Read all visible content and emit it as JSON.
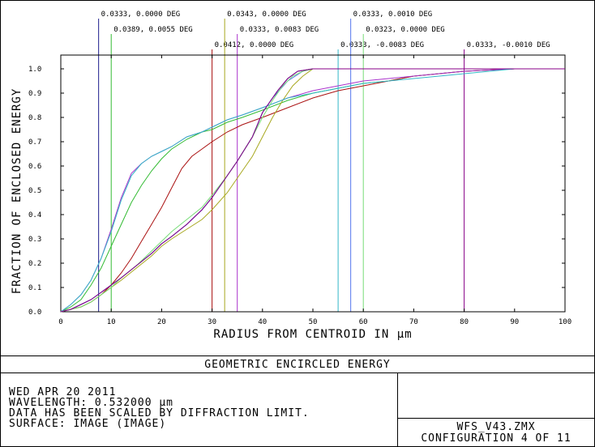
{
  "chart_data": {
    "type": "line",
    "xlabel": "RADIUS FROM CENTROID IN µm",
    "ylabel": "FRACTION OF ENCLOSED ENERGY",
    "xlim": [
      0,
      100
    ],
    "ylim": [
      0,
      1
    ],
    "xticks": [
      "0",
      "10",
      "20",
      "30",
      "40",
      "50",
      "60",
      "70",
      "80",
      "90",
      "100"
    ],
    "yticks": [
      "0.0",
      "0.1",
      "0.2",
      "0.3",
      "0.4",
      "0.5",
      "0.6",
      "0.7",
      "0.8",
      "0.9",
      "1.0"
    ],
    "grid": false,
    "legend_placement": "top",
    "series": [
      {
        "name": "0.0333, 0.0000 DEG",
        "color": "#1c1c8c",
        "marker_x": 7.5,
        "x": [
          0,
          2,
          4,
          6,
          8,
          10,
          12,
          15,
          18,
          20,
          22,
          25,
          28,
          30,
          33,
          35,
          38,
          40,
          43,
          45,
          47,
          50,
          55,
          60,
          65,
          70,
          75,
          80,
          85,
          90,
          95,
          100
        ],
        "y": [
          0,
          0.01,
          0.03,
          0.05,
          0.08,
          0.11,
          0.14,
          0.19,
          0.24,
          0.28,
          0.31,
          0.36,
          0.42,
          0.47,
          0.56,
          0.62,
          0.72,
          0.82,
          0.91,
          0.96,
          0.99,
          1.0,
          1.0,
          1.0,
          1.0,
          1.0,
          1.0,
          1.0,
          1.0,
          1.0,
          1.0,
          1.0
        ]
      },
      {
        "name": "0.0389, 0.0055 DEG",
        "color": "#33bb33",
        "marker_x": 10,
        "x": [
          0,
          2,
          4,
          6,
          8,
          10,
          12,
          14,
          16,
          18,
          20,
          22,
          25,
          28,
          30,
          33,
          36,
          40,
          45,
          50,
          55,
          60,
          65,
          70,
          75,
          80,
          85,
          90,
          95,
          100
        ],
        "y": [
          0,
          0.02,
          0.05,
          0.11,
          0.18,
          0.27,
          0.36,
          0.45,
          0.52,
          0.58,
          0.63,
          0.67,
          0.71,
          0.74,
          0.75,
          0.78,
          0.8,
          0.83,
          0.87,
          0.9,
          0.92,
          0.94,
          0.95,
          0.97,
          0.98,
          0.99,
          0.995,
          1.0,
          1.0,
          1.0
        ]
      },
      {
        "name": "0.0412, 0.0000 DEG",
        "color": "#aa1111",
        "marker_x": 30,
        "x": [
          0,
          2,
          4,
          6,
          8,
          10,
          12,
          14,
          16,
          18,
          20,
          22,
          24,
          26,
          28,
          30,
          33,
          36,
          40,
          45,
          50,
          55,
          60,
          65,
          70,
          75,
          80,
          85,
          90,
          95,
          100
        ],
        "y": [
          0,
          0.01,
          0.02,
          0.04,
          0.07,
          0.11,
          0.16,
          0.22,
          0.29,
          0.36,
          0.43,
          0.51,
          0.59,
          0.64,
          0.67,
          0.7,
          0.74,
          0.77,
          0.8,
          0.84,
          0.88,
          0.91,
          0.93,
          0.95,
          0.97,
          0.98,
          0.99,
          0.995,
          1.0,
          1.0,
          1.0
        ]
      },
      {
        "name": "0.0343, 0.0000 DEG",
        "color": "#a8a820",
        "marker_x": 32.5,
        "x": [
          0,
          2,
          4,
          6,
          8,
          10,
          12,
          15,
          18,
          20,
          22,
          25,
          28,
          30,
          33,
          35,
          38,
          40,
          42,
          44,
          46,
          48,
          50,
          55,
          60,
          65,
          70,
          75,
          80,
          85,
          90,
          95,
          100
        ],
        "y": [
          0,
          0.01,
          0.02,
          0.04,
          0.07,
          0.1,
          0.13,
          0.18,
          0.23,
          0.27,
          0.3,
          0.34,
          0.38,
          0.42,
          0.49,
          0.55,
          0.64,
          0.72,
          0.8,
          0.87,
          0.93,
          0.97,
          1.0,
          1.0,
          1.0,
          1.0,
          1.0,
          1.0,
          1.0,
          1.0,
          1.0,
          1.0,
          1.0
        ]
      },
      {
        "name": "0.0333, 0.0083 DEG",
        "color": "#aa33cc",
        "marker_x": 35,
        "x": [
          0,
          2,
          4,
          6,
          8,
          10,
          12,
          14,
          16,
          18,
          20,
          22,
          25,
          28,
          30,
          33,
          36,
          40,
          45,
          50,
          55,
          60,
          65,
          70,
          75,
          80,
          85,
          90,
          95,
          100
        ],
        "y": [
          0,
          0.03,
          0.07,
          0.13,
          0.22,
          0.34,
          0.47,
          0.57,
          0.61,
          0.64,
          0.66,
          0.68,
          0.72,
          0.74,
          0.76,
          0.79,
          0.81,
          0.84,
          0.88,
          0.91,
          0.93,
          0.95,
          0.96,
          0.97,
          0.98,
          0.99,
          0.995,
          1.0,
          1.0,
          1.0
        ]
      },
      {
        "name": "0.0333, -0.0083 DEG",
        "color": "#33b8c8",
        "marker_x": 55,
        "x": [
          0,
          2,
          4,
          6,
          8,
          10,
          12,
          14,
          16,
          18,
          20,
          22,
          25,
          28,
          30,
          33,
          36,
          40,
          45,
          50,
          55,
          60,
          65,
          70,
          75,
          80,
          85,
          90,
          95,
          100
        ],
        "y": [
          0,
          0.03,
          0.07,
          0.13,
          0.22,
          0.33,
          0.46,
          0.56,
          0.61,
          0.64,
          0.66,
          0.68,
          0.72,
          0.74,
          0.76,
          0.79,
          0.81,
          0.84,
          0.88,
          0.9,
          0.92,
          0.94,
          0.95,
          0.96,
          0.97,
          0.98,
          0.99,
          1.0,
          1.0,
          1.0
        ]
      },
      {
        "name": "0.0333, 0.0010 DEG",
        "color": "#5577ee",
        "marker_x": 57.5,
        "x": [
          0,
          2,
          4,
          6,
          8,
          10,
          12,
          15,
          18,
          20,
          22,
          25,
          28,
          30,
          33,
          35,
          38,
          40,
          42,
          45,
          48,
          50,
          55,
          60,
          65,
          70,
          75,
          80,
          85,
          90,
          95,
          100
        ],
        "y": [
          0,
          0.01,
          0.03,
          0.05,
          0.08,
          0.11,
          0.14,
          0.19,
          0.24,
          0.28,
          0.31,
          0.36,
          0.42,
          0.47,
          0.56,
          0.62,
          0.72,
          0.82,
          0.88,
          0.95,
          0.99,
          1.0,
          1.0,
          1.0,
          1.0,
          1.0,
          1.0,
          1.0,
          1.0,
          1.0,
          1.0,
          1.0
        ]
      },
      {
        "name": "0.0323, 0.0000 DEG",
        "color": "#77dd77",
        "marker_x": 60,
        "x": [
          0,
          2,
          4,
          6,
          8,
          10,
          12,
          15,
          18,
          20,
          22,
          25,
          28,
          30,
          33,
          35,
          38,
          40,
          42,
          44,
          46,
          48,
          50,
          55,
          60,
          65,
          70,
          75,
          80,
          85,
          90,
          95,
          100
        ],
        "y": [
          0,
          0.01,
          0.02,
          0.04,
          0.07,
          0.1,
          0.14,
          0.19,
          0.25,
          0.29,
          0.33,
          0.38,
          0.43,
          0.48,
          0.56,
          0.62,
          0.72,
          0.8,
          0.87,
          0.93,
          0.97,
          0.99,
          1.0,
          1.0,
          1.0,
          1.0,
          1.0,
          1.0,
          1.0,
          1.0,
          1.0,
          1.0,
          1.0
        ]
      },
      {
        "name": "0.0333, -0.0010 DEG",
        "color": "#880088",
        "marker_x": 80,
        "x": [
          0,
          2,
          4,
          6,
          8,
          10,
          12,
          15,
          18,
          20,
          22,
          25,
          28,
          30,
          33,
          35,
          38,
          40,
          43,
          45,
          47,
          50,
          55,
          60,
          65,
          70,
          75,
          80,
          85,
          90,
          95,
          100
        ],
        "y": [
          0,
          0.01,
          0.03,
          0.05,
          0.08,
          0.11,
          0.14,
          0.19,
          0.24,
          0.28,
          0.31,
          0.36,
          0.42,
          0.47,
          0.56,
          0.62,
          0.72,
          0.82,
          0.91,
          0.96,
          0.99,
          1.0,
          1.0,
          1.0,
          1.0,
          1.0,
          1.0,
          1.0,
          1.0,
          1.0,
          1.0,
          1.0
        ]
      }
    ]
  },
  "title": "GEOMETRIC ENCIRCLED ENERGY",
  "info": {
    "date": "WED APR 20 2011",
    "wavelength": "WAVELENGTH: 0.532000 µm",
    "scaling": "DATA HAS BEEN SCALED BY DIFFRACTION LIMIT.",
    "surface": "SURFACE: IMAGE (IMAGE)"
  },
  "file": {
    "name": "WFS_V43.ZMX",
    "configuration": "CONFIGURATION 4 OF 11"
  }
}
